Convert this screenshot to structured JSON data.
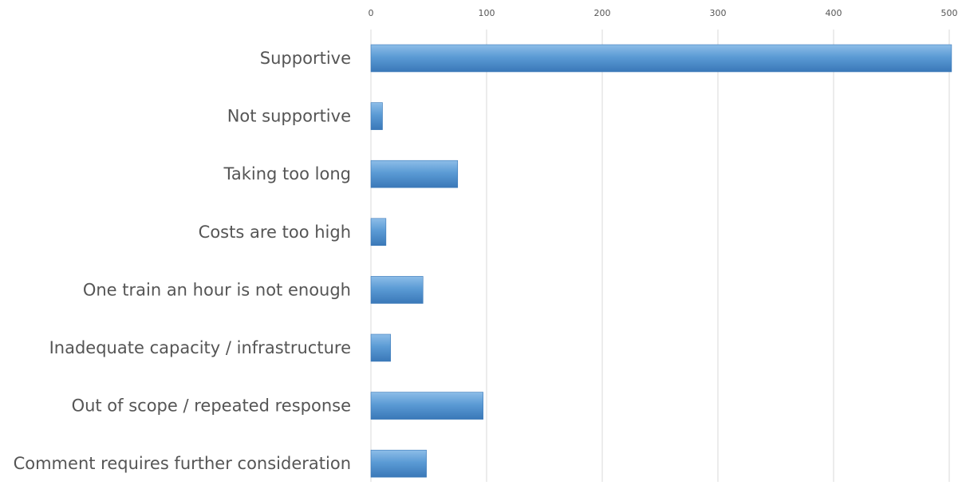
{
  "chart_data": {
    "type": "bar",
    "orientation": "horizontal",
    "categories": [
      "Supportive",
      "Not supportive",
      "Taking too long",
      "Costs are too high",
      "One train an hour is not enough",
      "Inadequate capacity / infrastructure",
      "Out of scope / repeated response",
      "Comment requires further consideration"
    ],
    "values": [
      502,
      10,
      75,
      13,
      45,
      17,
      97,
      48
    ],
    "title": "",
    "xlabel": "",
    "ylabel": "",
    "xlim": [
      0,
      500
    ],
    "xticks": [
      "0",
      "100",
      "200",
      "300",
      "400",
      "500"
    ],
    "x_axis_position": "top",
    "grid": true,
    "legend": "none",
    "bar_color": "#5b9bd5",
    "bar_color_dark": "#3a78b8",
    "bar_color_light": "#8dbde8",
    "gridline_color": "#d9d9d9",
    "label_color": "#555555"
  }
}
